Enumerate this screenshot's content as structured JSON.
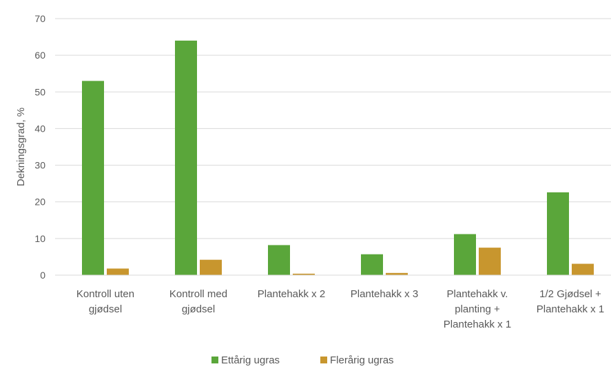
{
  "chart_data": {
    "type": "bar",
    "title": "",
    "xlabel": "",
    "ylabel": "Dekningsgrad, %",
    "ylim": [
      0,
      70
    ],
    "yticks": [
      0,
      10,
      20,
      30,
      40,
      50,
      60,
      70
    ],
    "grid": true,
    "legend_position": "bottom",
    "categories": [
      [
        "Kontroll uten",
        "gjødsel"
      ],
      [
        "Kontroll med",
        "gjødsel"
      ],
      [
        "Plantehakk x 2"
      ],
      [
        "Plantehakk x 3"
      ],
      [
        "Plantehakk v.",
        "planting +",
        "Plantehakk x 1"
      ],
      [
        "1/2 Gjødsel +",
        "Plantehakk x 1"
      ]
    ],
    "series": [
      {
        "name": "Ettårig ugras",
        "color": "#5aa63a",
        "values": [
          53,
          64,
          8.2,
          5.7,
          11.2,
          22.6
        ]
      },
      {
        "name": "Flerårig ugras",
        "color": "#c8962e",
        "values": [
          1.8,
          4.2,
          0.4,
          0.6,
          7.5,
          3.1
        ]
      }
    ]
  }
}
